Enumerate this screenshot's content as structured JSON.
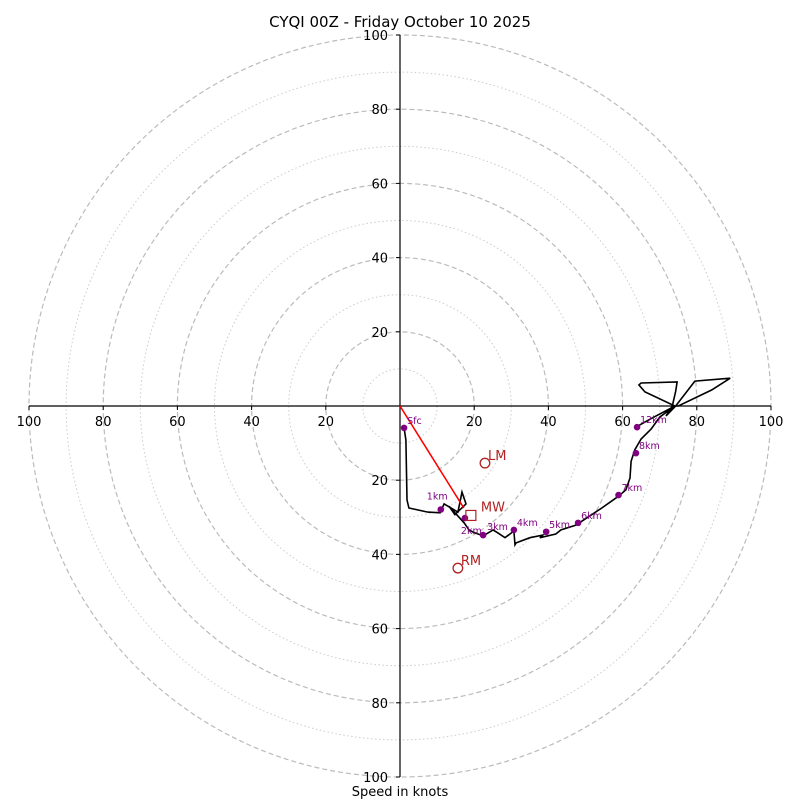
{
  "chart_data": {
    "type": "line",
    "subtype": "hodograph",
    "title": "CYQI 00Z - Friday October 10 2025",
    "xlabel": "Speed in knots",
    "ylabel": "",
    "xlim": [
      -100,
      100
    ],
    "ylim": [
      -100,
      100
    ],
    "units": "knots",
    "grid": true,
    "ring_major": [
      20,
      40,
      60,
      80,
      100
    ],
    "ring_minor": [
      10,
      30,
      50,
      70,
      90
    ],
    "x_tick_labels": [
      "100",
      "80",
      "60",
      "40",
      "20",
      "20",
      "40",
      "60",
      "80",
      "100"
    ],
    "x_ticks": [
      -100,
      -80,
      -60,
      -40,
      -20,
      20,
      40,
      60,
      80,
      100
    ],
    "y_tick_labels": [
      "100",
      "80",
      "60",
      "40",
      "20",
      "20",
      "40",
      "60",
      "80",
      "100"
    ],
    "y_ticks": [
      100,
      80,
      60,
      40,
      20,
      -20,
      -40,
      -60,
      -80,
      -100
    ],
    "series": [
      {
        "name": "hodograph-trace",
        "color": "#000000",
        "u": [
          1.1,
          1.6,
          1.9,
          2.4,
          7.5,
          10.8,
          11.9,
          15.6,
          16.7,
          17.8,
          14.8,
          13.2,
          17.3,
          18.6,
          19.7,
          22.4,
          25.1,
          26.4,
          28.3,
          30.7,
          31.0,
          31.3,
          35.0,
          38.5,
          37.7,
          42.0,
          43.4,
          47.4,
          54.4,
          58.9,
          60.9,
          62.0,
          62.3,
          63.3,
          65.0,
          67.7,
          70.0,
          74.1,
          66.0,
          64.4,
          65.0,
          74.7,
          74.3,
          73.4,
          71.7,
          74.3,
          79.5,
          89.0,
          84.0,
          75.0,
          74.1,
          68.0,
          63.6
        ],
        "v": [
          -5.9,
          -9.2,
          -25.3,
          -27.5,
          -28.6,
          -28.8,
          -26.4,
          -28.6,
          -23.2,
          -26.4,
          -29.3,
          -27.0,
          -31.5,
          -33.4,
          -34.0,
          -35.0,
          -33.4,
          -34.2,
          -35.5,
          -33.7,
          -37.4,
          -36.9,
          -35.5,
          -34.8,
          -35.5,
          -34.5,
          -33.4,
          -32.1,
          -27.5,
          -24.3,
          -22.6,
          -19.4,
          -14.9,
          -11.8,
          -8.9,
          -6.2,
          -3.0,
          0.0,
          3.8,
          5.7,
          6.2,
          6.5,
          4.0,
          0.0,
          -2.7,
          0.0,
          6.7,
          7.5,
          4.3,
          0.0,
          0.0,
          -3.2,
          -5.7
        ]
      },
      {
        "name": "mean-wind-line",
        "color": "#ff0000",
        "u": [
          0,
          17.2
        ],
        "v": [
          0,
          -27.5
        ]
      }
    ],
    "height_markers": [
      {
        "label": "Sfc",
        "u": 1.1,
        "v": -5.9
      },
      {
        "label": "1km",
        "u": 11.0,
        "v": -27.9
      },
      {
        "label": "2km",
        "u": 17.5,
        "v": -30.2
      },
      {
        "label": "3km",
        "u": 22.4,
        "v": -34.8
      },
      {
        "label": "4km",
        "u": 30.7,
        "v": -33.4
      },
      {
        "label": "5km",
        "u": 39.4,
        "v": -33.9
      },
      {
        "label": "6km",
        "u": 48.0,
        "v": -31.5
      },
      {
        "label": "7km",
        "u": 58.9,
        "v": -24.0
      },
      {
        "label": "8km",
        "u": 63.6,
        "v": -12.7
      },
      {
        "label": "12km",
        "u": 63.9,
        "v": -5.7
      }
    ],
    "storm_motion": [
      {
        "label": "LM",
        "u": 22.9,
        "v": -15.4,
        "marker": "circle"
      },
      {
        "label": "MW",
        "u": 19.1,
        "v": -29.5,
        "marker": "square"
      },
      {
        "label": "RM",
        "u": 15.6,
        "v": -43.7,
        "marker": "circle"
      }
    ],
    "colors": {
      "trace": "#000000",
      "markers": "#800080",
      "motion": "#b22222",
      "mean_wind_line": "#ff0000",
      "grid": "#bbbbbb"
    }
  }
}
